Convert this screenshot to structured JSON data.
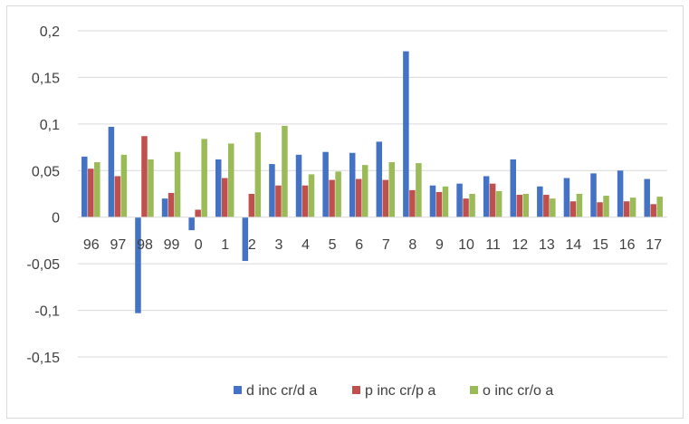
{
  "chart_data": {
    "type": "bar",
    "title": "",
    "xlabel": "",
    "ylabel": "",
    "ylim": [
      -0.15,
      0.2
    ],
    "y_ticks": [
      0.2,
      0.15,
      0.1,
      0.05,
      0,
      -0.05,
      -0.1,
      -0.15
    ],
    "y_tick_labels": [
      "0,2",
      "0,15",
      "0,1",
      "0,05",
      "0",
      "-0,05",
      "-0,1",
      "-0,15"
    ],
    "grid": true,
    "legend_position": "bottom",
    "categories": [
      "96",
      "97",
      "98",
      "99",
      "0",
      "1",
      "2",
      "3",
      "4",
      "5",
      "6",
      "7",
      "8",
      "9",
      "10",
      "11",
      "12",
      "13",
      "14",
      "15",
      "16",
      "17"
    ],
    "series": [
      {
        "name": "d inc cr/d a",
        "color": "#4472c4",
        "values": [
          0.065,
          0.097,
          -0.103,
          0.02,
          -0.014,
          0.062,
          -0.047,
          0.057,
          0.067,
          0.07,
          0.069,
          0.081,
          0.178,
          0.034,
          0.036,
          0.044,
          0.062,
          0.033,
          0.042,
          0.047,
          0.05,
          0.041
        ]
      },
      {
        "name": "p inc cr/p a",
        "color": "#c0504d",
        "values": [
          0.052,
          0.044,
          0.087,
          0.026,
          0.008,
          0.042,
          0.025,
          0.034,
          0.034,
          0.04,
          0.041,
          0.04,
          0.029,
          0.027,
          0.02,
          0.036,
          0.024,
          0.024,
          0.017,
          0.016,
          0.017,
          0.014
        ]
      },
      {
        "name": "o inc cr/o a",
        "color": "#9bbb59",
        "values": [
          0.059,
          0.067,
          0.062,
          0.07,
          0.084,
          0.079,
          0.091,
          0.098,
          0.046,
          0.049,
          0.056,
          0.059,
          0.058,
          0.033,
          0.025,
          0.028,
          0.025,
          0.02,
          0.025,
          0.023,
          0.021,
          0.022
        ]
      }
    ]
  }
}
